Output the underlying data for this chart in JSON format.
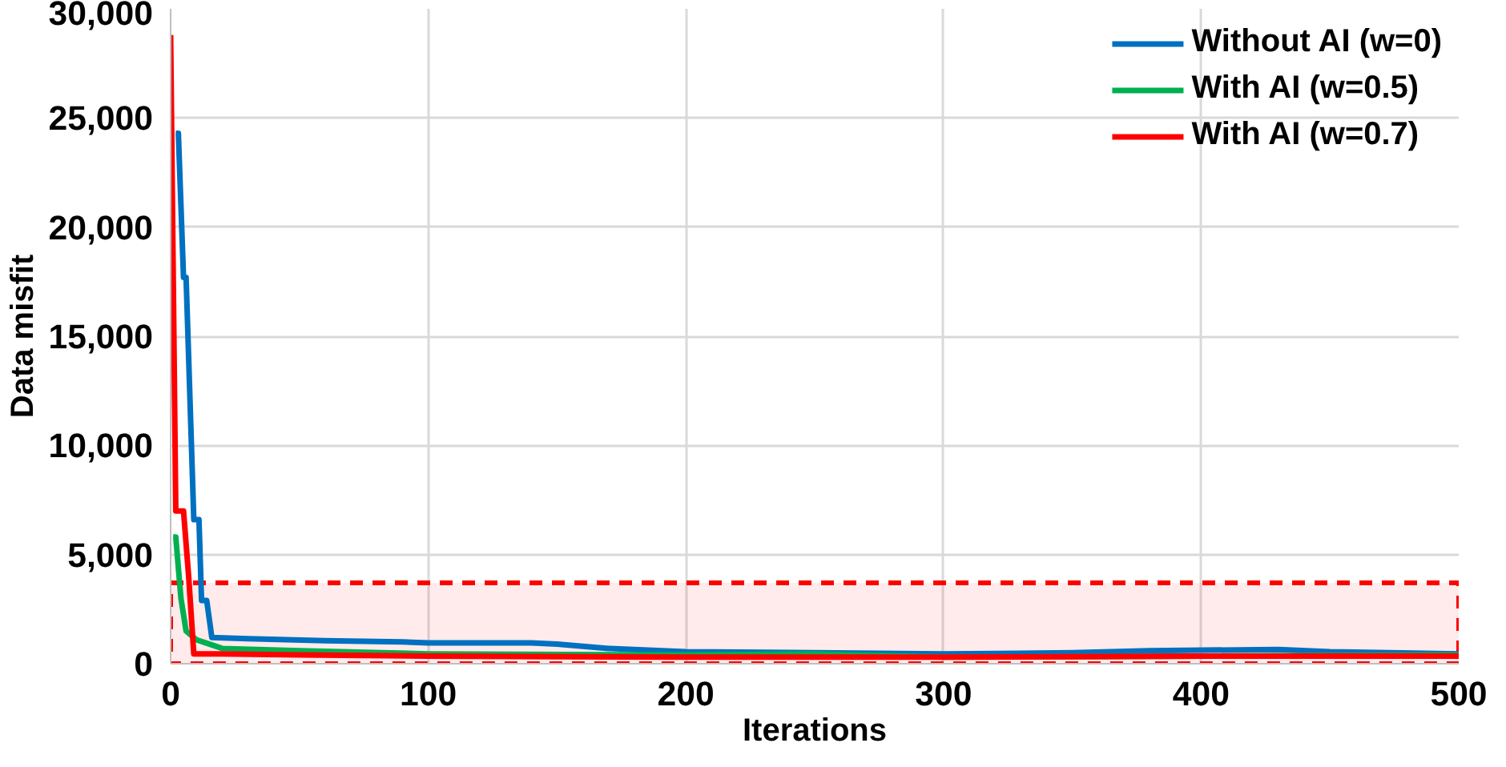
{
  "chart_data": {
    "type": "line",
    "xlabel": "Iterations",
    "ylabel": "Data misfit",
    "xlim": [
      0,
      500
    ],
    "ylim": [
      0,
      30000
    ],
    "xticks": [
      0,
      100,
      200,
      300,
      400,
      500
    ],
    "yticks": [
      0,
      {
        "value": 5000,
        "label": "5,000"
      },
      {
        "value": 10000,
        "label": "10,000"
      },
      {
        "value": 15000,
        "label": "15,000"
      },
      {
        "value": 20000,
        "label": "20,000"
      },
      {
        "value": 25000,
        "label": "25,000"
      },
      {
        "value": 30000,
        "label": "30,000"
      }
    ],
    "grid": true,
    "legend": "top right",
    "marker": "none",
    "line_style": "solid",
    "bands": [
      {
        "axis": "y",
        "from": 0,
        "to": 3700,
        "color": "#ff0000"
      }
    ],
    "series": [
      {
        "name": "Without AI (w=0)",
        "color": "#0070c0",
        "x": [
          2,
          3,
          5,
          6,
          9,
          11,
          12,
          14,
          16,
          30,
          60,
          90,
          100,
          140,
          150,
          170,
          200,
          250,
          300,
          350,
          380,
          430,
          450,
          500
        ],
        "values": [
          24300,
          24300,
          17700,
          17700,
          6600,
          6600,
          2900,
          2900,
          1200,
          1150,
          1050,
          1000,
          950,
          950,
          900,
          700,
          550,
          500,
          450,
          500,
          600,
          650,
          550,
          450
        ]
      },
      {
        "name": "With AI (w=0.5)",
        "color": "#00b050",
        "x": [
          1,
          2,
          4,
          6,
          10,
          20,
          50,
          100,
          200,
          250,
          300,
          400,
          500
        ],
        "values": [
          5800,
          5800,
          3000,
          1500,
          1100,
          700,
          600,
          450,
          400,
          450,
          300,
          350,
          400
        ]
      },
      {
        "name": "With AI (w=0.7)",
        "color": "#ff0000",
        "x": [
          0,
          2,
          5,
          7,
          9,
          20,
          50,
          100,
          200,
          300,
          400,
          500
        ],
        "values": [
          28800,
          7000,
          7000,
          4000,
          450,
          450,
          400,
          350,
          300,
          300,
          350,
          350
        ]
      }
    ]
  }
}
